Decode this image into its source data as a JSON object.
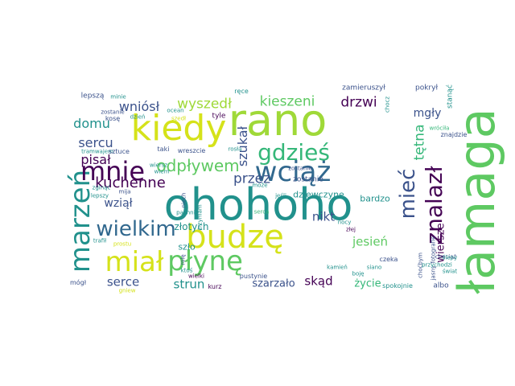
{
  "colors": {
    "dark_purple": "#440154",
    "indigo": "#3b528b",
    "blue": "#31688e",
    "teal": "#21918c",
    "green": "#35b779",
    "light_green": "#5ec962",
    "lime": "#9fd938",
    "yellow": "#d5e21a"
  },
  "words": [
    {
      "text": "ohohoho",
      "color": "teal"
    },
    {
      "text": "łamaga",
      "color": "light_green"
    },
    {
      "text": "rano",
      "color": "lime"
    },
    {
      "text": "kiedy",
      "color": "yellow"
    },
    {
      "text": "budzę",
      "color": "yellow"
    },
    {
      "text": "płynę",
      "color": "light_green"
    },
    {
      "text": "miał",
      "color": "yellow"
    },
    {
      "text": "wielkim",
      "color": "blue"
    },
    {
      "text": "marzeń",
      "color": "teal"
    },
    {
      "text": "mnie",
      "color": "dark_purple"
    },
    {
      "text": "wciąż",
      "color": "blue"
    },
    {
      "text": "gdzieś",
      "color": "green"
    },
    {
      "text": "znalazł",
      "color": "dark_purple"
    },
    {
      "text": "mieć",
      "color": "indigo"
    },
    {
      "text": "odpływem",
      "color": "light_green"
    },
    {
      "text": "kuchenne",
      "color": "dark_purple"
    },
    {
      "text": "przez",
      "color": "indigo"
    },
    {
      "text": "tętna",
      "color": "green"
    },
    {
      "text": "szukał",
      "color": "indigo"
    },
    {
      "text": "wyszedł",
      "color": "lime"
    },
    {
      "text": "kieszeni",
      "color": "light_green"
    },
    {
      "text": "drzwi",
      "color": "dark_purple"
    },
    {
      "text": "wniósł",
      "color": "indigo"
    },
    {
      "text": "domu",
      "color": "teal"
    },
    {
      "text": "sercu",
      "color": "indigo"
    },
    {
      "text": "pisał",
      "color": "dark_purple"
    },
    {
      "text": "mgły",
      "color": "indigo"
    },
    {
      "text": "wziął",
      "color": "indigo"
    },
    {
      "text": "nikt",
      "color": "indigo"
    },
    {
      "text": "wiersze",
      "color": "dark_purple"
    },
    {
      "text": "jesień",
      "color": "light_green"
    },
    {
      "text": "strun",
      "color": "teal"
    },
    {
      "text": "serce",
      "color": "indigo"
    },
    {
      "text": "skąd",
      "color": "dark_purple"
    },
    {
      "text": "szarzało",
      "color": "indigo"
    },
    {
      "text": "życie",
      "color": "green"
    },
    {
      "text": "złotych",
      "color": "teal"
    },
    {
      "text": "dziewczynę",
      "color": "teal"
    },
    {
      "text": "bardzo",
      "color": "teal"
    },
    {
      "text": "szło",
      "color": "teal"
    },
    {
      "text": "lepszą",
      "color": "indigo"
    },
    {
      "text": "minie",
      "color": "teal"
    },
    {
      "text": "serca",
      "color": "green"
    },
    {
      "text": "zostanie",
      "color": "indigo"
    },
    {
      "text": "zamieruszył",
      "color": "indigo"
    },
    {
      "text": "pokrył",
      "color": "indigo"
    },
    {
      "text": "stanąć",
      "color": "teal"
    },
    {
      "text": "ręce",
      "color": "teal"
    },
    {
      "text": "kosę",
      "color": "indigo"
    },
    {
      "text": "zostanie",
      "color": "indigo"
    },
    {
      "text": "dzień",
      "color": "teal"
    },
    {
      "text": "szedł",
      "color": "yellow"
    },
    {
      "text": "ocean",
      "color": "teal"
    },
    {
      "text": "tyle",
      "color": "dark_purple"
    },
    {
      "text": "tramwajem",
      "color": "teal"
    },
    {
      "text": "sztuce",
      "color": "indigo"
    },
    {
      "text": "taki",
      "color": "indigo"
    },
    {
      "text": "wreszcie",
      "color": "indigo"
    },
    {
      "text": "rosła",
      "color": "teal"
    },
    {
      "text": "zostanie",
      "color": "indigo"
    },
    {
      "text": "wróciła",
      "color": "green"
    },
    {
      "text": "znajdzie",
      "color": "indigo"
    },
    {
      "text": "chocz",
      "color": "teal"
    },
    {
      "text": "wiersz",
      "color": "teal"
    },
    {
      "text": "zginąć",
      "color": "teal"
    },
    {
      "text": "lepszy",
      "color": "teal"
    },
    {
      "text": "mija",
      "color": "indigo"
    },
    {
      "text": "może",
      "color": "teal"
    },
    {
      "text": "jeśli",
      "color": "teal"
    },
    {
      "text": "niech",
      "color": "indigo"
    },
    {
      "text": "trzymam",
      "color": "teal"
    },
    {
      "text": "pachnie",
      "color": "teal"
    },
    {
      "text": "nocy",
      "color": "teal"
    },
    {
      "text": "złej",
      "color": "dark_purple"
    },
    {
      "text": "jasny fotografie",
      "color": "indigo"
    },
    {
      "text": "przychodzi",
      "color": "teal"
    },
    {
      "text": "chociaż",
      "color": "indigo"
    },
    {
      "text": "trafił",
      "color": "teal"
    },
    {
      "text": "prostu",
      "color": "yellow"
    },
    {
      "text": "rolę",
      "color": "indigo"
    },
    {
      "text": "ktoś",
      "color": "teal"
    },
    {
      "text": "wielki",
      "color": "dark_purple"
    },
    {
      "text": "kurz",
      "color": "dark_purple"
    },
    {
      "text": "pustynie",
      "color": "indigo"
    },
    {
      "text": "czeka",
      "color": "indigo"
    },
    {
      "text": "kamień",
      "color": "teal"
    },
    {
      "text": "siano",
      "color": "teal"
    },
    {
      "text": "boję",
      "color": "teal"
    },
    {
      "text": "ślepy",
      "color": "teal"
    },
    {
      "text": "świat",
      "color": "teal"
    },
    {
      "text": "mógł",
      "color": "indigo"
    },
    {
      "text": "gniew",
      "color": "yellow"
    },
    {
      "text": "spokojnie",
      "color": "teal"
    },
    {
      "text": "albo",
      "color": "indigo"
    },
    {
      "text": "choćbym",
      "color": "indigo"
    },
    {
      "text": "wiem",
      "color": "teal"
    }
  ]
}
